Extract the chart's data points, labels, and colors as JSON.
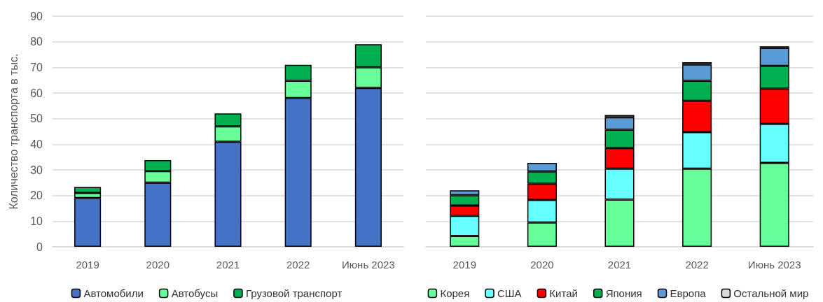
{
  "chart_data": [
    {
      "type": "bar",
      "stacked": true,
      "ylabel": "Количество транспорта в тыс.",
      "categories": [
        "2019",
        "2020",
        "2021",
        "2022",
        "Июнь 2023"
      ],
      "ylim": [
        0,
        90
      ],
      "yticks": [
        0,
        10,
        20,
        30,
        40,
        50,
        60,
        70,
        80,
        90
      ],
      "grid": "y",
      "legend": "bottom",
      "series": [
        {
          "name": "Автомобили",
          "color": "#4472c4",
          "values": [
            19,
            25,
            41,
            58,
            62
          ]
        },
        {
          "name": "Автобусы",
          "color": "#66ff99",
          "values": [
            2,
            4.5,
            6,
            6.8,
            8
          ]
        },
        {
          "name": "Грузовой транспорт",
          "color": "#00b050",
          "values": [
            2.3,
            4.3,
            5,
            6.2,
            9
          ]
        }
      ]
    },
    {
      "type": "bar",
      "stacked": true,
      "categories": [
        "2019",
        "2020",
        "2021",
        "2022",
        "Июнь 2023"
      ],
      "ylim": [
        0,
        90
      ],
      "yticks": [
        0,
        10,
        20,
        30,
        40,
        50,
        60,
        70,
        80,
        90
      ],
      "grid": "y",
      "legend": "bottom",
      "tick_labels": "x",
      "series": [
        {
          "name": "Корея",
          "color": "#66ff99",
          "values": [
            4.2,
            9.5,
            18.4,
            30.5,
            32.7
          ]
        },
        {
          "name": "США",
          "color": "#66ffff",
          "values": [
            7.9,
            8.8,
            12.1,
            14.2,
            15.2
          ]
        },
        {
          "name": "Китай",
          "color": "#ff0000",
          "values": [
            4,
            6.3,
            8,
            12.2,
            13.8
          ]
        },
        {
          "name": "Япония",
          "color": "#00b050",
          "values": [
            4,
            4.8,
            7.2,
            7.9,
            8.9
          ]
        },
        {
          "name": "Европа",
          "color": "#5b9bd5",
          "values": [
            1.9,
            3.3,
            4.8,
            6.3,
            7
          ]
        },
        {
          "name": "Остальной мир",
          "color": "#d9d9d9",
          "values": [
            null,
            null,
            0.9,
            0.9,
            0.6
          ]
        }
      ]
    }
  ]
}
